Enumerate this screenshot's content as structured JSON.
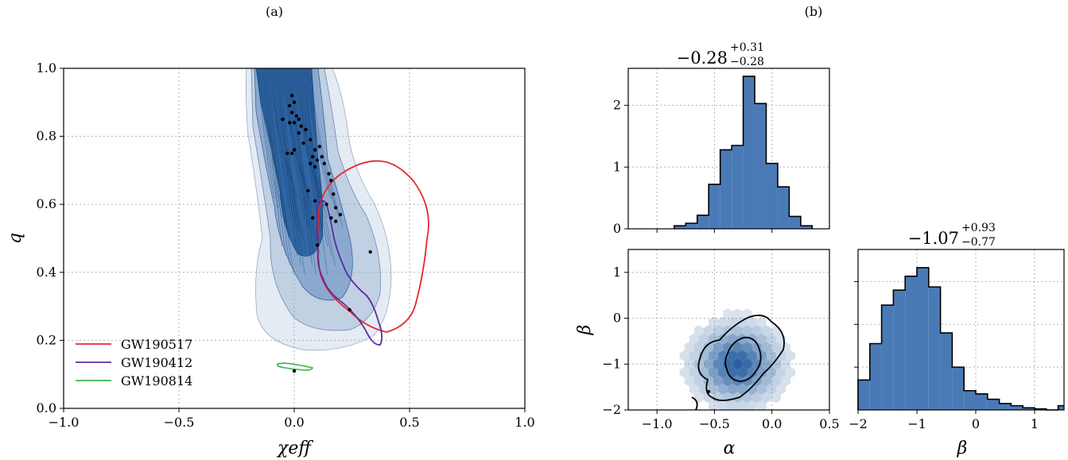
{
  "panels": {
    "a_label": "(a)",
    "b_label": "(b)"
  },
  "colors": {
    "blue": "#1f5a9c",
    "blue_fill": "#4a7ab5",
    "red": "#e8282e",
    "purple": "#5a2d9c",
    "green": "#3cb44b"
  },
  "chart_data": [
    {
      "type": "scatter",
      "panel": "(a)",
      "xlabel": "χeff",
      "ylabel": "q",
      "xlim": [
        -1.0,
        1.0
      ],
      "ylim": [
        0.0,
        1.0
      ],
      "xticks": [
        "−1.0",
        "−0.5",
        "0.0",
        "0.5",
        "1.0"
      ],
      "yticks": [
        "0.0",
        "0.2",
        "0.4",
        "0.6",
        "0.8",
        "1.0"
      ],
      "grid": true,
      "legend_position": "lower-left",
      "legend": [
        "GW190517",
        "GW190412",
        "GW190814"
      ],
      "points": [
        {
          "x": -0.01,
          "y": 0.92
        },
        {
          "x": 0.0,
          "y": 0.9
        },
        {
          "x": -0.02,
          "y": 0.89
        },
        {
          "x": -0.01,
          "y": 0.87
        },
        {
          "x": 0.01,
          "y": 0.86
        },
        {
          "x": 0.02,
          "y": 0.85
        },
        {
          "x": -0.02,
          "y": 0.84
        },
        {
          "x": 0.0,
          "y": 0.84
        },
        {
          "x": 0.03,
          "y": 0.83
        },
        {
          "x": -0.05,
          "y": 0.85
        },
        {
          "x": 0.05,
          "y": 0.82
        },
        {
          "x": 0.02,
          "y": 0.81
        },
        {
          "x": 0.07,
          "y": 0.79
        },
        {
          "x": 0.04,
          "y": 0.78
        },
        {
          "x": 0.11,
          "y": 0.77
        },
        {
          "x": 0.09,
          "y": 0.76
        },
        {
          "x": 0.0,
          "y": 0.76
        },
        {
          "x": -0.01,
          "y": 0.75
        },
        {
          "x": -0.03,
          "y": 0.75
        },
        {
          "x": 0.12,
          "y": 0.74
        },
        {
          "x": 0.08,
          "y": 0.74
        },
        {
          "x": 0.1,
          "y": 0.73
        },
        {
          "x": 0.07,
          "y": 0.72
        },
        {
          "x": 0.13,
          "y": 0.72
        },
        {
          "x": 0.09,
          "y": 0.71
        },
        {
          "x": 0.15,
          "y": 0.69
        },
        {
          "x": 0.16,
          "y": 0.67
        },
        {
          "x": 0.06,
          "y": 0.64
        },
        {
          "x": 0.17,
          "y": 0.63
        },
        {
          "x": 0.09,
          "y": 0.61
        },
        {
          "x": 0.14,
          "y": 0.6
        },
        {
          "x": 0.18,
          "y": 0.59
        },
        {
          "x": 0.2,
          "y": 0.57
        },
        {
          "x": 0.16,
          "y": 0.56
        },
        {
          "x": 0.18,
          "y": 0.55
        },
        {
          "x": 0.08,
          "y": 0.56
        },
        {
          "x": 0.1,
          "y": 0.48
        },
        {
          "x": 0.33,
          "y": 0.46
        },
        {
          "x": 0.24,
          "y": 0.29
        },
        {
          "x": 0.0,
          "y": 0.11
        }
      ]
    },
    {
      "type": "histogram",
      "panel": "(b) top",
      "title_value": "−0.28",
      "title_upper": "+0.31",
      "title_lower": "−0.28",
      "xlim": [
        -1.25,
        0.5
      ],
      "ylim": [
        0,
        2.6
      ],
      "yticks": [
        "0",
        "1",
        "2"
      ],
      "bin_edges": [
        -0.85,
        -0.75,
        -0.65,
        -0.55,
        -0.45,
        -0.35,
        -0.25,
        -0.15,
        -0.05,
        0.05,
        0.15,
        0.25,
        0.35
      ],
      "counts": [
        0.05,
        0.09,
        0.22,
        0.72,
        1.28,
        1.35,
        2.47,
        2.03,
        1.06,
        0.68,
        0.2,
        0.05
      ]
    },
    {
      "type": "hexbin",
      "panel": "(b) bottom-left",
      "xlabel": "α",
      "ylabel": "β",
      "xlim": [
        -1.25,
        0.5
      ],
      "ylim": [
        -2.0,
        1.5
      ],
      "xticks": [
        "−1.0",
        "−0.5",
        "0.0",
        "0.5"
      ],
      "yticks": [
        "−2",
        "−1",
        "0",
        "1"
      ],
      "contour_peak": {
        "x": -0.3,
        "y": -1.0
      },
      "marker": {
        "x": -0.55,
        "y": -1.6
      }
    },
    {
      "type": "histogram",
      "panel": "(b) bottom-right",
      "xlabel": "β",
      "title_value": "−1.07",
      "title_upper": "+0.93",
      "title_lower": "−0.77",
      "xlim": [
        -2.0,
        1.5
      ],
      "ylim": [
        0,
        1.5
      ],
      "xticks": [
        "−2",
        "−1",
        "0",
        "1"
      ],
      "bin_edges": [
        -2.0,
        -1.8,
        -1.6,
        -1.4,
        -1.2,
        -1.0,
        -0.8,
        -0.6,
        -0.4,
        -0.2,
        0.0,
        0.2,
        0.4,
        0.6,
        0.8,
        1.0,
        1.2,
        1.4,
        1.5
      ],
      "counts": [
        0.28,
        0.62,
        0.98,
        1.12,
        1.25,
        1.33,
        1.15,
        0.72,
        0.4,
        0.18,
        0.15,
        0.1,
        0.06,
        0.04,
        0.02,
        0.01,
        0.0,
        0.04
      ]
    }
  ]
}
